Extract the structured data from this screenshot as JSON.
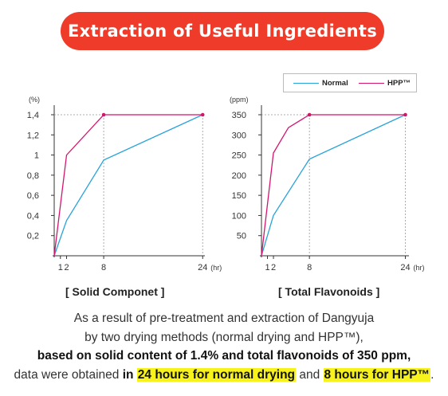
{
  "banner": {
    "title": "Extraction of Useful Ingredients"
  },
  "legend": {
    "items": [
      {
        "label": "Normal",
        "color": "#29a3d9"
      },
      {
        "label": "HPP™",
        "color": "#d4156e"
      }
    ]
  },
  "chart_data": [
    {
      "type": "line",
      "title": "[ Solid Componet ]",
      "ylabel": "(%)",
      "xlabel": "(hr)",
      "x_ticks": [
        "1",
        "2",
        "8",
        "24"
      ],
      "x_tick_values": [
        1,
        2,
        8,
        24
      ],
      "y_ticks": [
        "0,2",
        "0,4",
        "0,6",
        "0,8",
        "1",
        "1,2",
        "1,4"
      ],
      "y_tick_values": [
        0.2,
        0.4,
        0.6,
        0.8,
        1.0,
        1.2,
        1.4
      ],
      "xlim": [
        0,
        25
      ],
      "ylim": [
        0,
        1.4
      ],
      "series": [
        {
          "name": "Normal",
          "color": "#29a3d9",
          "x": [
            0,
            2,
            8,
            24
          ],
          "y": [
            0,
            0.35,
            0.95,
            1.4
          ]
        },
        {
          "name": "HPP™",
          "color": "#d4156e",
          "x": [
            0,
            2,
            8,
            24
          ],
          "y": [
            0,
            1.0,
            1.4,
            1.4
          ]
        }
      ]
    },
    {
      "type": "line",
      "title": "[ Total Flavonoids ]",
      "ylabel": "(ppm)",
      "xlabel": "(hr)",
      "x_ticks": [
        "1",
        "2",
        "8",
        "24"
      ],
      "x_tick_values": [
        1,
        2,
        8,
        24
      ],
      "y_ticks": [
        "50",
        "100",
        "150",
        "200",
        "250",
        "300",
        "350"
      ],
      "y_tick_values": [
        50,
        100,
        150,
        200,
        250,
        300,
        350
      ],
      "xlim": [
        0,
        25
      ],
      "ylim": [
        0,
        350
      ],
      "series": [
        {
          "name": "Normal",
          "color": "#29a3d9",
          "x": [
            0,
            2,
            8,
            24
          ],
          "y": [
            0,
            100,
            240,
            350
          ]
        },
        {
          "name": "HPP™",
          "color": "#d4156e",
          "x": [
            0,
            2,
            4.5,
            8,
            24
          ],
          "y": [
            0,
            255,
            318,
            350,
            350
          ]
        }
      ]
    }
  ],
  "description": {
    "line1": "As a result of pre-treatment and extraction of Dangyuja",
    "line2": "by two drying methods (normal drying and HPP™),",
    "line3": "based on solid content of 1.4% and total flavonoids of 350 ppm,",
    "line4_pre": "data were obtained ",
    "line4_b1": "in ",
    "line4_hl1": "24 hours for normal drying",
    "line4_mid": " and ",
    "line4_hl2": "8 hours for HPP™",
    "line4_end": "."
  }
}
